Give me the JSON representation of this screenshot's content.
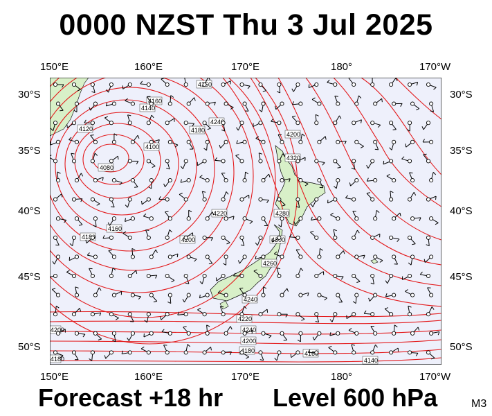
{
  "title": "0000 NZST Thu 3 Jul 2025",
  "footer": {
    "forecast": "Forecast +18 hr",
    "level": "Level 600 hPa",
    "model": "M3"
  },
  "axes": {
    "lon_labels": [
      "150°E",
      "160°E",
      "170°E",
      "180°",
      "170°W"
    ],
    "lat_labels": [
      "30°S",
      "35°S",
      "40°S",
      "45°S",
      "50°S"
    ]
  },
  "contour_labels": [
    "4260",
    "4160",
    "4140",
    "4120",
    "4180",
    "4240",
    "4200",
    "4100",
    "4080",
    "4220",
    "4280",
    "4300",
    "4320",
    "4240",
    "4260",
    "4160",
    "4180",
    "4200",
    "4220",
    "4240",
    "4200",
    "4180",
    "4160",
    "4140",
    "4200",
    "4180"
  ],
  "colors": {
    "ocean": "#eef0fb",
    "land": "#d8f0c8",
    "contour": "#e31a1c",
    "barb": "#000000"
  }
}
